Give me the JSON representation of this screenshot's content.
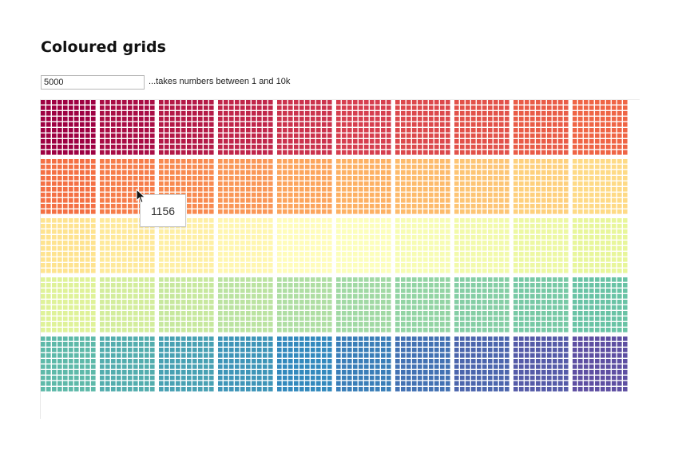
{
  "page": {
    "title": "Coloured grids"
  },
  "input": {
    "value": "5000",
    "hint": "...takes numbers between 1 and 10k"
  },
  "grid": {
    "blocks_per_row": 10,
    "block_rows": 5,
    "cells_per_block_side": 10,
    "colour_scale": "spectral",
    "colours": [
      "#9e0142",
      "#d53e4f",
      "#f46d43",
      "#fdae61",
      "#fee08b",
      "#ffffbf",
      "#e6f598",
      "#abdda4",
      "#66c2a5",
      "#3288bd",
      "#5e4fa2"
    ]
  },
  "tooltip": {
    "value": "1156"
  },
  "cursor": {
    "icon": "mouse-pointer-icon"
  }
}
